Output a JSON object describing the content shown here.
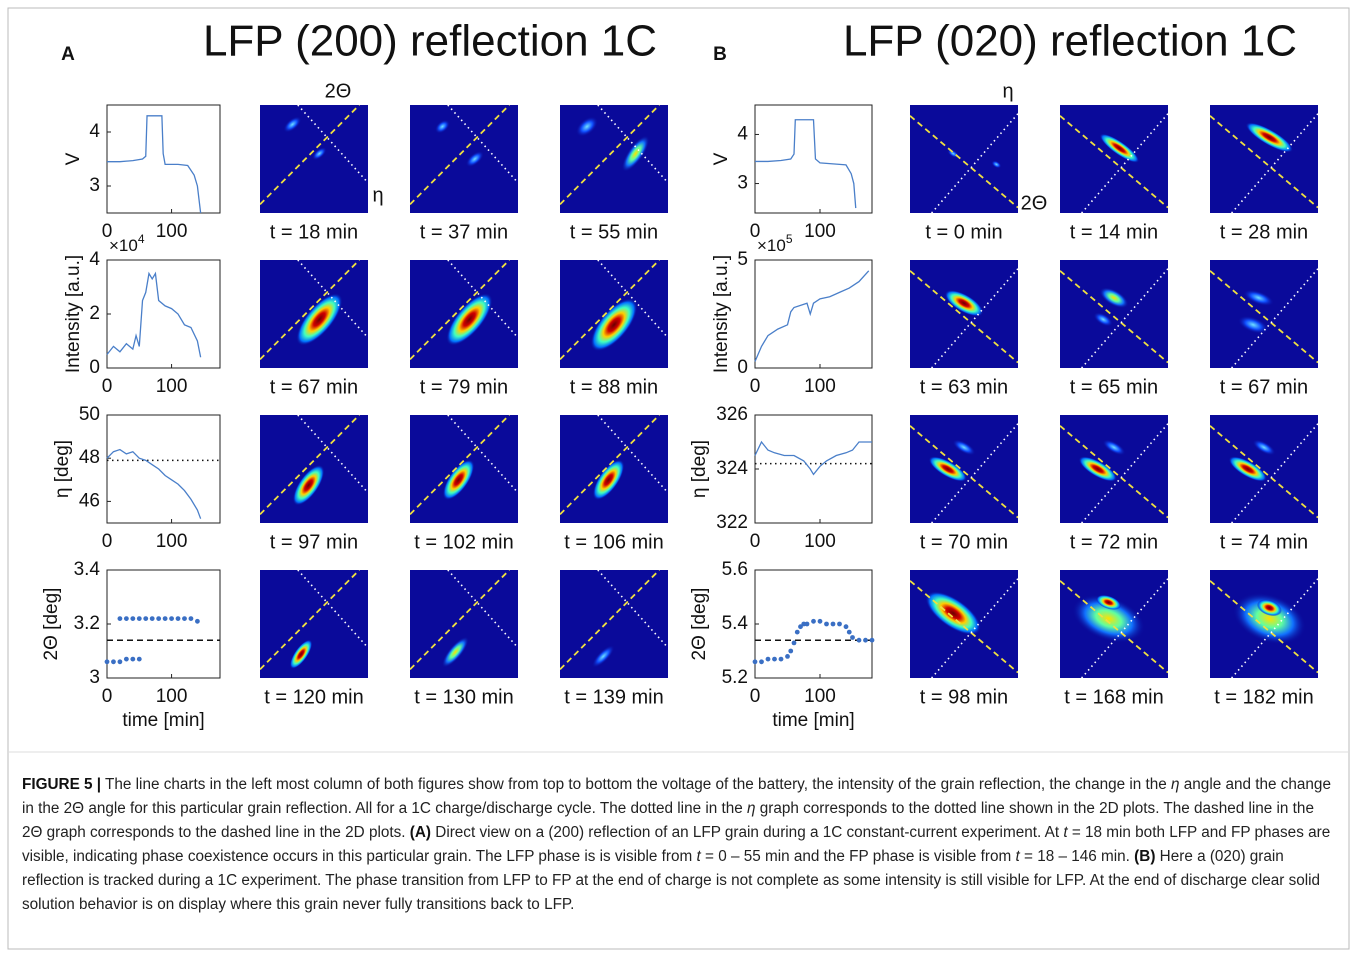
{
  "figure": {
    "panels": [
      {
        "letter": "A",
        "title": "LFP (200) reflection 1C",
        "annotations": [
          "2Θ",
          "η"
        ],
        "charts": [
          {
            "type": "line",
            "ylabel": "V",
            "xlim": [
              0,
              175
            ],
            "ylim": [
              2.5,
              4.5
            ],
            "xticks": [
              0,
              100
            ],
            "yticks": [
              3,
              4
            ],
            "x": [
              0,
              20,
              40,
              55,
              60,
              62,
              75,
              85,
              87,
              90,
              110,
              125,
              135,
              140,
              145
            ],
            "values": [
              3.45,
              3.45,
              3.47,
              3.5,
              3.55,
              4.3,
              4.3,
              4.3,
              3.6,
              3.4,
              3.4,
              3.38,
              3.2,
              3.0,
              2.5
            ]
          },
          {
            "type": "line",
            "ylabel": "Intensity [a.u.]",
            "multiplier": {
              "base": "×10",
              "exponent": "4"
            },
            "xlim": [
              0,
              175
            ],
            "ylim": [
              0,
              4
            ],
            "xticks": [
              0,
              100
            ],
            "yticks": [
              0,
              2,
              4
            ],
            "x": [
              0,
              10,
              20,
              30,
              40,
              45,
              50,
              55,
              60,
              65,
              70,
              75,
              80,
              90,
              100,
              110,
              120,
              130,
              140,
              145
            ],
            "values": [
              0.5,
              0.8,
              0.6,
              0.9,
              0.7,
              1.2,
              0.8,
              2.5,
              2.8,
              3.5,
              3.3,
              3.5,
              2.5,
              2.3,
              2.2,
              2.0,
              1.6,
              1.5,
              1.0,
              0.4
            ]
          },
          {
            "type": "line",
            "ylabel": "η [deg]",
            "xlim": [
              0,
              175
            ],
            "ylim": [
              45,
              50
            ],
            "xticks": [
              0,
              100
            ],
            "yticks": [
              46,
              48,
              50
            ],
            "ref_line": {
              "value": 47.9,
              "style": "dotted"
            },
            "x": [
              0,
              10,
              20,
              30,
              40,
              50,
              60,
              70,
              80,
              90,
              100,
              110,
              120,
              130,
              140,
              145
            ],
            "values": [
              48.0,
              48.3,
              48.4,
              48.2,
              48.3,
              48.0,
              47.9,
              47.7,
              47.5,
              47.2,
              47.0,
              46.8,
              46.5,
              46.1,
              45.6,
              45.2
            ]
          },
          {
            "type": "scatter",
            "ylabel": "2Θ [deg]",
            "xlabel": "time [min]",
            "xlim": [
              0,
              175
            ],
            "ylim": [
              3,
              3.4
            ],
            "xticks": [
              0,
              100
            ],
            "yticks": [
              3,
              3.2,
              3.4
            ],
            "ref_line": {
              "value": 3.14,
              "style": "dashed"
            },
            "x": [
              0,
              10,
              20,
              30,
              40,
              50,
              20,
              30,
              40,
              50,
              60,
              70,
              80,
              90,
              100,
              110,
              120,
              130,
              140
            ],
            "values": [
              3.06,
              3.06,
              3.06,
              3.07,
              3.07,
              3.07,
              3.22,
              3.22,
              3.22,
              3.22,
              3.22,
              3.22,
              3.22,
              3.22,
              3.22,
              3.22,
              3.22,
              3.22,
              3.21
            ]
          }
        ],
        "images": [
          "t = 18 min",
          "t = 37 min",
          "t = 55 min",
          "t = 67 min",
          "t = 79 min",
          "t = 88 min",
          "t = 97 min",
          "t = 102 min",
          "t = 106 min",
          "t = 120 min",
          "t = 130 min",
          "t = 139 min"
        ]
      },
      {
        "letter": "B",
        "title": "LFP (020) reflection 1C",
        "annotations": [
          "η",
          "2Θ"
        ],
        "charts": [
          {
            "type": "line",
            "ylabel": "V",
            "xlim": [
              0,
              180
            ],
            "ylim": [
              2.4,
              4.6
            ],
            "xticks": [
              0,
              100
            ],
            "yticks": [
              3,
              4
            ],
            "x": [
              0,
              20,
              40,
              55,
              60,
              62,
              75,
              90,
              93,
              100,
              120,
              140,
              148,
              152,
              155
            ],
            "values": [
              3.45,
              3.45,
              3.47,
              3.5,
              3.6,
              4.3,
              4.3,
              4.3,
              3.5,
              3.42,
              3.4,
              3.38,
              3.2,
              3.0,
              2.5
            ]
          },
          {
            "type": "line",
            "ylabel": "Intensity [a.u.]",
            "multiplier": {
              "base": "×10",
              "exponent": "5"
            },
            "xlim": [
              0,
              180
            ],
            "ylim": [
              0,
              5
            ],
            "xticks": [
              0,
              100
            ],
            "yticks": [
              0,
              5
            ],
            "x": [
              0,
              10,
              20,
              35,
              50,
              55,
              60,
              80,
              85,
              90,
              100,
              115,
              130,
              145,
              160,
              175
            ],
            "values": [
              0.3,
              1.0,
              1.5,
              1.8,
              2.0,
              2.6,
              2.8,
              3.0,
              2.5,
              3.0,
              3.2,
              3.3,
              3.5,
              3.7,
              4.0,
              4.5
            ]
          },
          {
            "type": "line",
            "ylabel": "η [deg]",
            "xlim": [
              0,
              180
            ],
            "ylim": [
              322,
              326
            ],
            "xticks": [
              0,
              100
            ],
            "yticks": [
              322,
              324,
              326
            ],
            "ref_line": {
              "value": 324.2,
              "style": "dotted"
            },
            "x": [
              0,
              10,
              20,
              30,
              45,
              60,
              75,
              85,
              90,
              100,
              110,
              125,
              140,
              150,
              160,
              180
            ],
            "values": [
              324.5,
              325.0,
              324.7,
              324.6,
              324.5,
              324.5,
              324.3,
              324.0,
              323.8,
              324.1,
              324.3,
              324.5,
              324.6,
              324.7,
              325.0,
              325.0
            ]
          },
          {
            "type": "scatter",
            "ylabel": "2Θ [deg]",
            "xlabel": "time [min]",
            "xlim": [
              0,
              180
            ],
            "ylim": [
              5.2,
              5.6
            ],
            "xticks": [
              0,
              100
            ],
            "yticks": [
              5.2,
              5.4,
              5.6
            ],
            "ref_line": {
              "value": 5.34,
              "style": "dashed"
            },
            "x": [
              0,
              10,
              20,
              30,
              40,
              50,
              55,
              60,
              65,
              70,
              75,
              80,
              90,
              100,
              110,
              120,
              130,
              140,
              145,
              150,
              160,
              170,
              180
            ],
            "values": [
              5.26,
              5.26,
              5.27,
              5.27,
              5.27,
              5.28,
              5.3,
              5.33,
              5.37,
              5.39,
              5.4,
              5.4,
              5.41,
              5.41,
              5.4,
              5.4,
              5.4,
              5.39,
              5.37,
              5.35,
              5.34,
              5.34,
              5.34
            ]
          }
        ],
        "images": [
          "t = 0 min",
          "t = 14 min",
          "t = 28 min",
          "t = 63 min",
          "t = 65 min",
          "t = 67 min",
          "t = 70 min",
          "t = 72 min",
          "t = 74 min",
          "t = 98 min",
          "t = 168 min",
          "t = 182 min"
        ]
      }
    ],
    "caption": [
      {
        "text": "FIGURE 5 |",
        "style": "bold"
      },
      {
        "text": " The line charts in the left most column of both figures show from top to bottom the voltage of the battery, the intensity of the grain reflection, the change in the ",
        "style": "normal"
      },
      {
        "text": "η",
        "style": "italic"
      },
      {
        "text": " angle and the change in the 2Θ angle for this particular grain reflection. All for a 1C charge/discharge cycle. The dotted line in the ",
        "style": "normal"
      },
      {
        "text": "η",
        "style": "italic"
      },
      {
        "text": " graph corresponds to the dotted line shown in the 2D plots. The dashed line in the 2Θ graph corresponds to the dashed line in the 2D plots. ",
        "style": "normal"
      },
      {
        "text": "(A)",
        "style": "bold"
      },
      {
        "text": " Direct view on a (200) reflection of an LFP grain during a 1C constant-current experiment. At ",
        "style": "normal"
      },
      {
        "text": "t",
        "style": "italic"
      },
      {
        "text": " = 18 min both LFP and FP phases are visible, indicating phase coexistence occurs in this particular grain. The LFP phase is is visible from ",
        "style": "normal"
      },
      {
        "text": "t",
        "style": "italic"
      },
      {
        "text": " = 0 – 55 min and the FP phase is visible from ",
        "style": "normal"
      },
      {
        "text": "t",
        "style": "italic"
      },
      {
        "text": " = 18 – 146 min. ",
        "style": "normal"
      },
      {
        "text": "(B)",
        "style": "bold"
      },
      {
        "text": " Here a (020) grain reflection is tracked during a 1C experiment. The phase transition from LFP to FP at the end of charge is not complete as some intensity is still visible for LFP. At the end of discharge clear solid solution behavior is on display where this grain never fully transitions back to LFP.",
        "style": "normal"
      }
    ]
  }
}
